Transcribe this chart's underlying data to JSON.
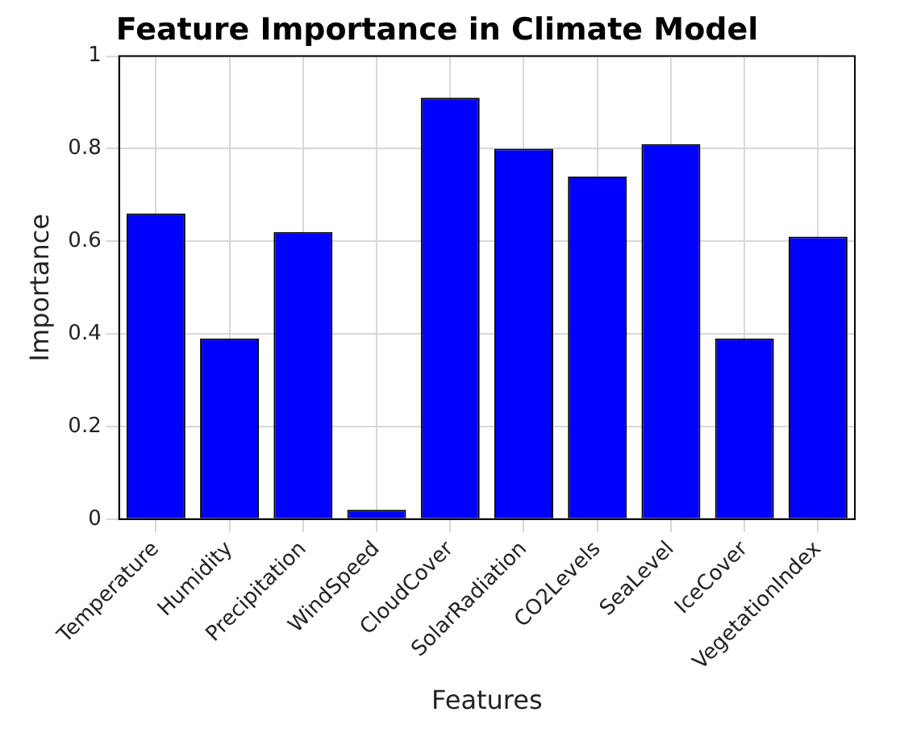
{
  "chart_data": {
    "type": "bar",
    "title": "Feature Importance in Climate Model",
    "xlabel": "Features",
    "ylabel": "Importance",
    "categories": [
      "Temperature",
      "Humidity",
      "Precipitation",
      "WindSpeed",
      "CloudCover",
      "SolarRadiation",
      "CO2Levels",
      "SeaLevel",
      "IceCover",
      "VegetationIndex"
    ],
    "values": [
      0.66,
      0.39,
      0.62,
      0.02,
      0.91,
      0.8,
      0.74,
      0.81,
      0.39,
      0.61
    ],
    "color": "#0000ff",
    "ylim": [
      0,
      1
    ],
    "yticks": [
      0,
      0.2,
      0.4,
      0.6,
      0.8,
      1
    ],
    "grid": true,
    "legend": false
  }
}
